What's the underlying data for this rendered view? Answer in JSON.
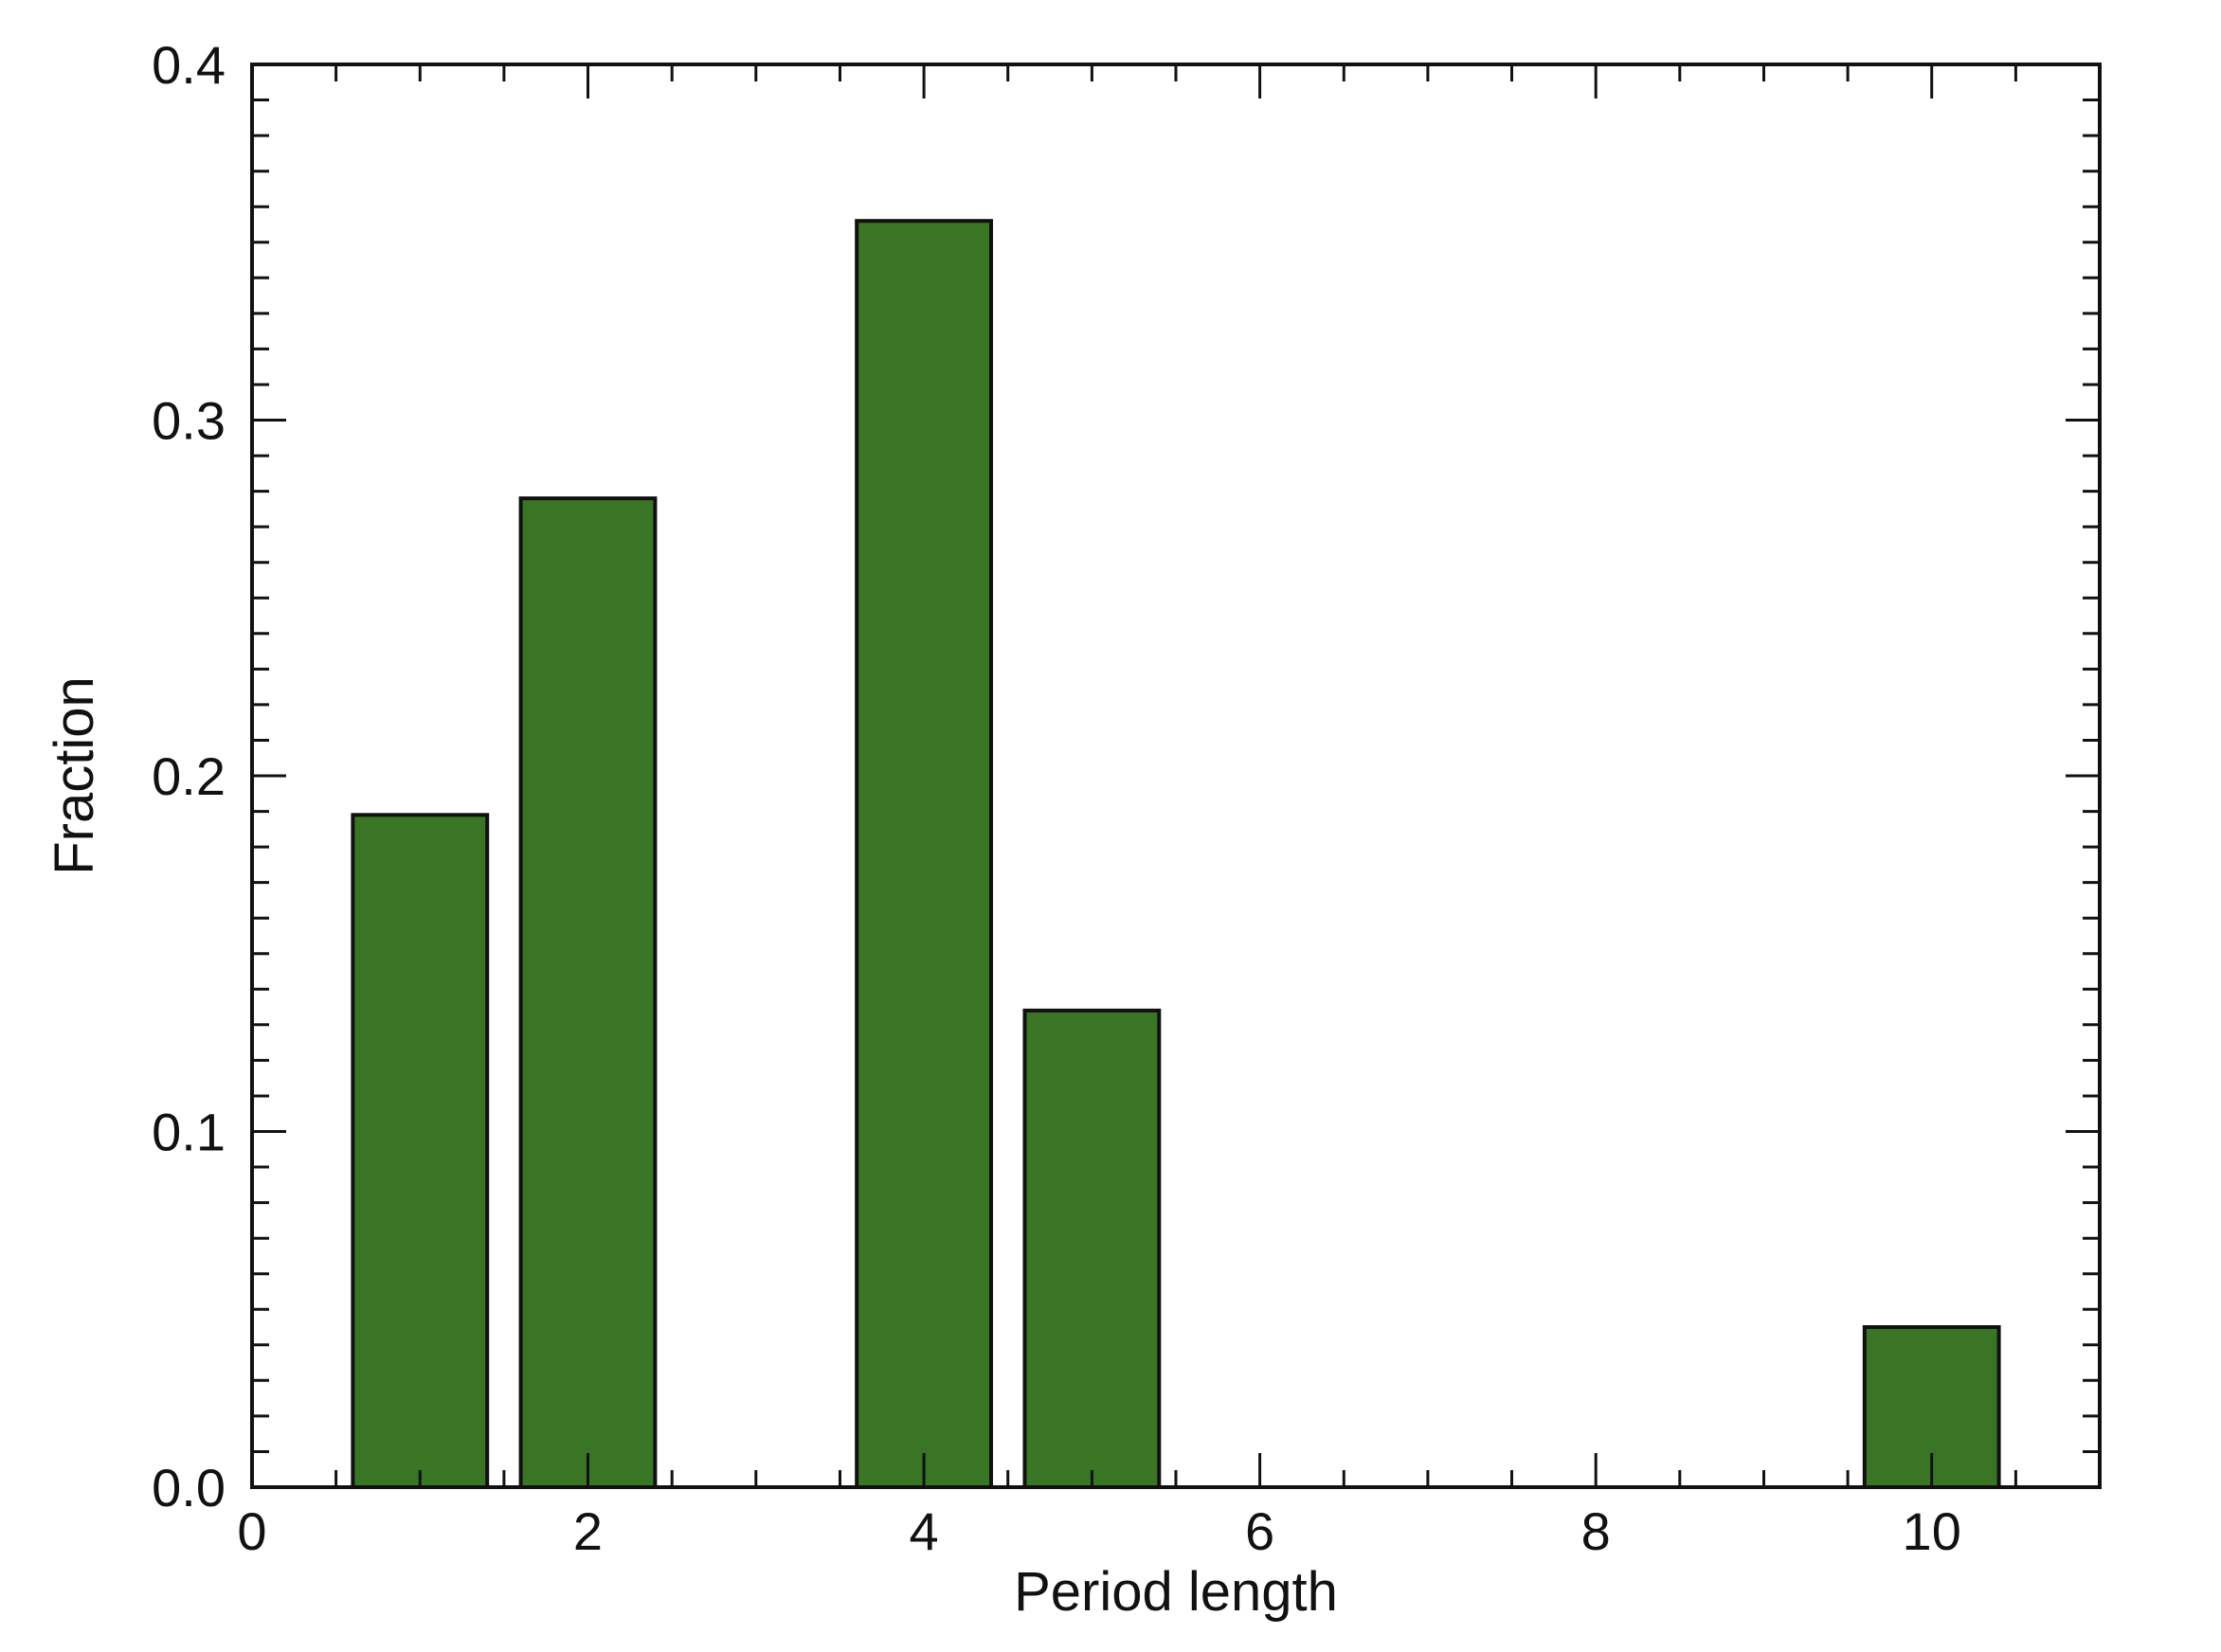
{
  "chart_data": {
    "type": "bar",
    "title": "",
    "xlabel": "Period length",
    "ylabel": "Fraction",
    "x": [
      1,
      2,
      4,
      5,
      10
    ],
    "values": [
      0.189,
      0.278,
      0.356,
      0.134,
      0.045
    ],
    "xlim": [
      0,
      11
    ],
    "ylim": [
      0,
      0.4
    ],
    "x_ticks": [
      0,
      2,
      4,
      6,
      8,
      10
    ],
    "x_tick_labels": [
      "0",
      "2",
      "4",
      "6",
      "8",
      "10"
    ],
    "y_ticks": [
      0.0,
      0.1,
      0.2,
      0.3,
      0.4
    ],
    "y_tick_labels": [
      "0.0",
      "0.1",
      "0.2",
      "0.3",
      "0.4"
    ],
    "x_minor_step": 0.5,
    "y_minor_step": 0.01,
    "bar_width": 0.8,
    "bar_color": "#3a7526",
    "bar_edge_color": "#111111",
    "grid": false,
    "legend": "none"
  }
}
